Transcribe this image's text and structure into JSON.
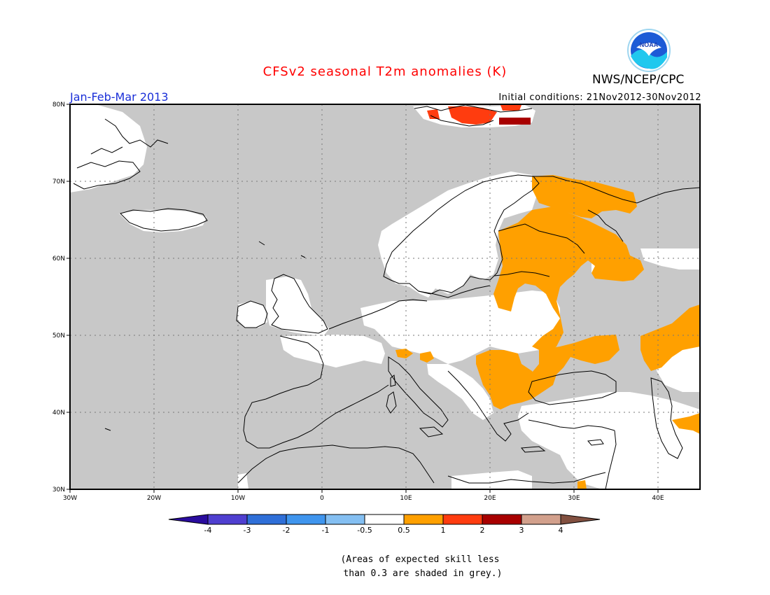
{
  "title": "CFSv2 seasonal T2m anomalies (K)",
  "season": "Jan-Feb-Mar 2013",
  "initial_conditions": "Initial conditions: 21Nov2012-30Nov2012",
  "agency": "NWS/NCEP/CPC",
  "logo_text": "NOAA",
  "axes": {
    "lat_labels": [
      "80N",
      "70N",
      "60N",
      "50N",
      "40N",
      "30N"
    ],
    "lon_labels": [
      "30W",
      "20W",
      "10W",
      "0",
      "10E",
      "20E",
      "30E",
      "40E"
    ]
  },
  "colorbar": {
    "tick_labels": [
      "-4",
      "-3",
      "-2",
      "-1",
      "-0.5",
      "0.5",
      "1",
      "2",
      "3",
      "4"
    ],
    "colors": [
      "#2a0c9e",
      "#4f3fd0",
      "#2f6fd8",
      "#3f95ee",
      "#84bff2",
      "#ffffff",
      "#ffa000",
      "#ff3c0f",
      "#a80000",
      "#d2a08c",
      "#825040"
    ]
  },
  "note": [
    "(Areas of expected skill less",
    " than 0.3 are shaded in grey.)"
  ],
  "colors": {
    "title": "#ff0000",
    "season": "#1a2fd8",
    "mask": "#c8c8c8",
    "skill_white": "#ffffff",
    "anomaly_orange": "#ffa000",
    "anomaly_red": "#ff3c0f",
    "anomaly_darkred": "#a80000",
    "coast": "#000000"
  }
}
